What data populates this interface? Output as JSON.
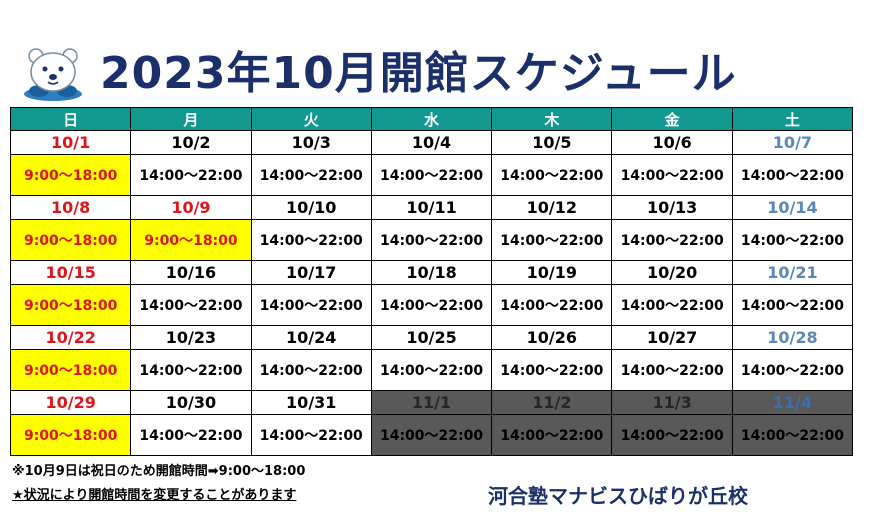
{
  "title": "2023年10月開館スケジュール",
  "weekdays": [
    "日",
    "月",
    "火",
    "水",
    "木",
    "金",
    "土"
  ],
  "weeks": [
    {
      "dates": [
        "10/1",
        "10/2",
        "10/3",
        "10/4",
        "10/5",
        "10/6",
        "10/7"
      ],
      "hours": [
        "9:00～18:00",
        "14:00～22:00",
        "14:00～22:00",
        "14:00～22:00",
        "14:00～22:00",
        "14:00～22:00",
        "14:00～22:00"
      ]
    },
    {
      "dates": [
        "10/8",
        "10/9",
        "10/10",
        "10/11",
        "10/12",
        "10/13",
        "10/14"
      ],
      "hours": [
        "9:00～18:00",
        "9:00～18:00",
        "14:00～22:00",
        "14:00～22:00",
        "14:00～22:00",
        "14:00～22:00",
        "14:00～22:00"
      ]
    },
    {
      "dates": [
        "10/15",
        "10/16",
        "10/17",
        "10/18",
        "10/19",
        "10/20",
        "10/21"
      ],
      "hours": [
        "9:00～18:00",
        "14:00～22:00",
        "14:00～22:00",
        "14:00～22:00",
        "14:00～22:00",
        "14:00～22:00",
        "14:00～22:00"
      ]
    },
    {
      "dates": [
        "10/22",
        "10/23",
        "10/24",
        "10/25",
        "10/26",
        "10/27",
        "10/28"
      ],
      "hours": [
        "9:00～18:00",
        "14:00～22:00",
        "14:00～22:00",
        "14:00～22:00",
        "14:00～22:00",
        "14:00～22:00",
        "14:00～22:00"
      ]
    },
    {
      "dates": [
        "10/29",
        "10/30",
        "10/31",
        "11/1",
        "11/2",
        "11/3",
        "11/4"
      ],
      "hours": [
        "9:00～18:00",
        "14:00～22:00",
        "14:00～22:00",
        "14:00～22:00",
        "14:00～22:00",
        "14:00～22:00",
        "14:00～22:00"
      ]
    }
  ],
  "colors": {
    "header_bg": "#12998f",
    "holiday_text": "#e0151c",
    "saturday_text": "#5b86b8",
    "holiday_hours_bg": "#ffff00",
    "next_month_bg": "#595959",
    "title": "#1b2f6b"
  },
  "notes": [
    "※10月9日は祝日のため開館時間➡9:00～18:00",
    "★状況により開館時間を変更することがあります"
  ],
  "school_name": "河合塾マナビスひばりが丘校",
  "mascot_icon": "polar-bear-icon"
}
